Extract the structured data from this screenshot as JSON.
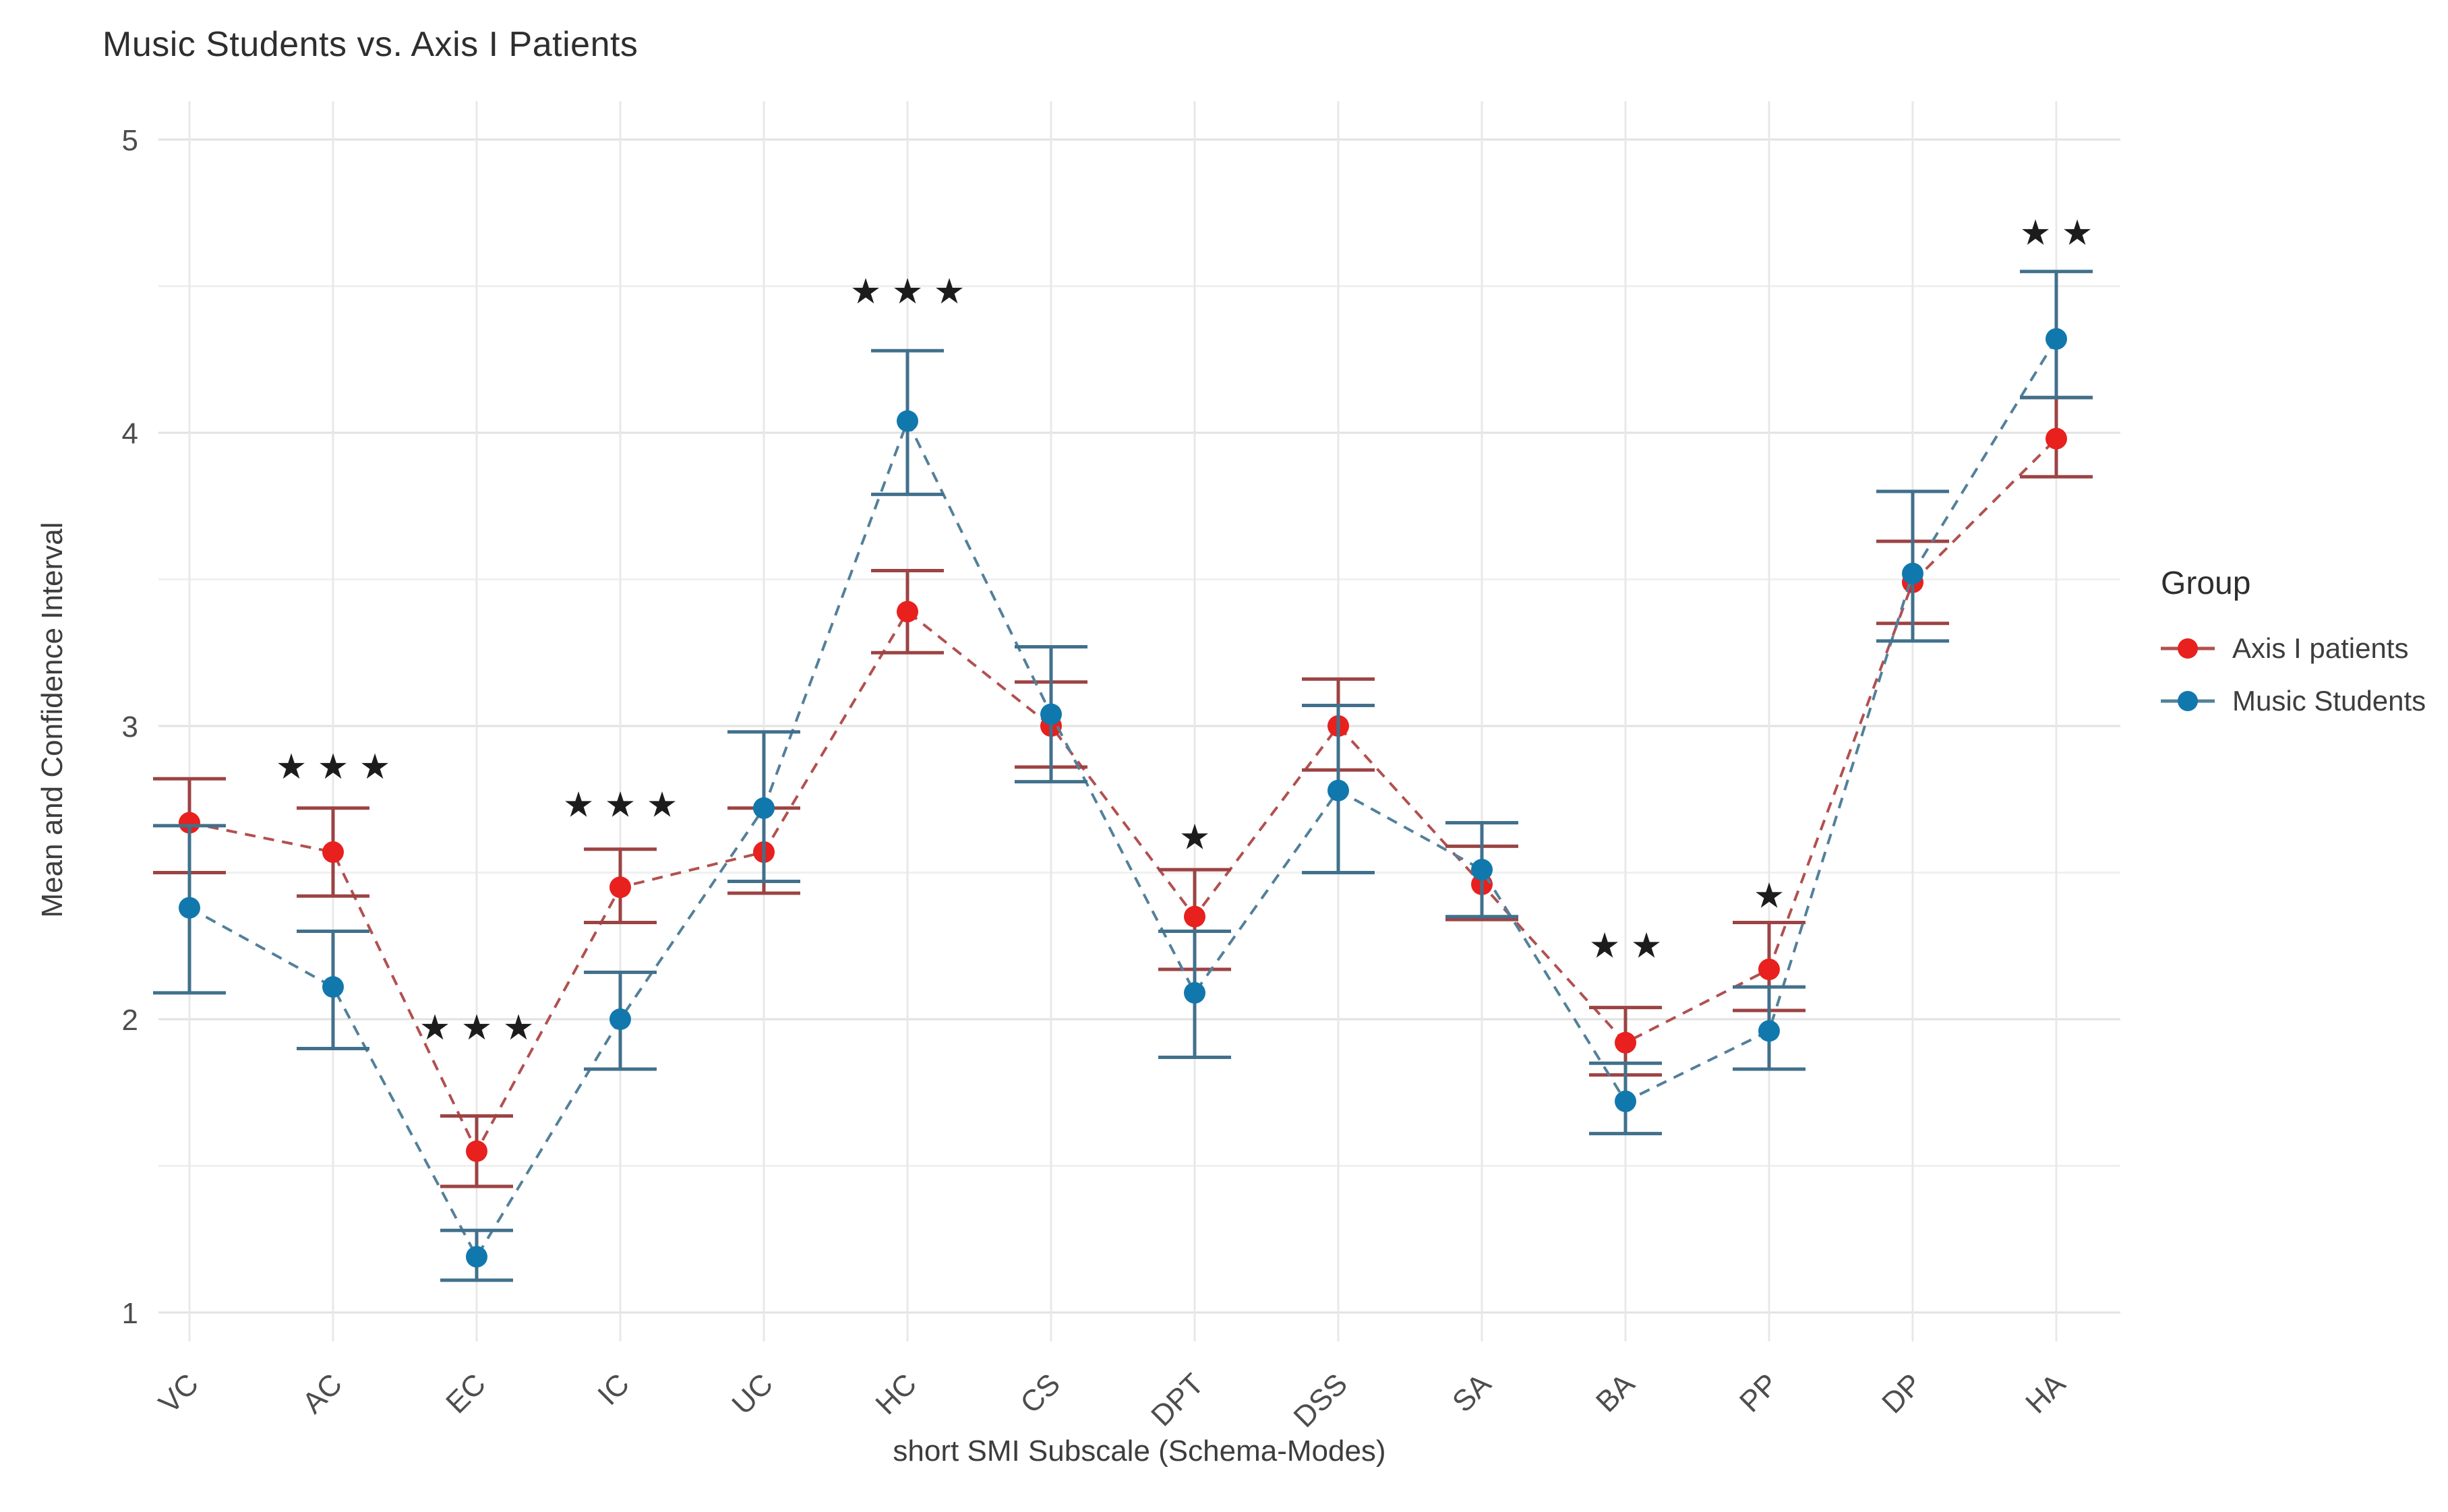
{
  "page": {
    "background": "#ffffff",
    "text_color": "#3d3d3d"
  },
  "chart_data": {
    "type": "line",
    "title": "Music Students vs. Axis I Patients",
    "xlabel": "short SMI Subscale (Schema-Modes)",
    "ylabel": "Mean and Confidence Interval",
    "categories": [
      "VC",
      "AC",
      "EC",
      "IC",
      "UC",
      "HC",
      "CS",
      "DPT",
      "DSS",
      "SA",
      "BA",
      "PP",
      "DP",
      "HA"
    ],
    "yticks": [
      1,
      2,
      3,
      4,
      5
    ],
    "ylim": [
      0.85,
      5.15
    ],
    "grid": {
      "horizontal_major": true,
      "horizontal_minor": true,
      "vertical_major": true,
      "legend_position": "right"
    },
    "style": {
      "major_grid_color": "#e2e2e2",
      "minor_grid_color": "#f0f0f0",
      "vertical_grid_color": "#e8e8e8",
      "star_color": "#1c1c1c",
      "tick_label_color": "#4d4d4d"
    },
    "legend": {
      "title": "Group"
    },
    "series": [
      {
        "name": "Axis I patients",
        "point_color": "#e8201e",
        "line_color": "#b25050",
        "errorbar_color": "#9c4343",
        "means": [
          2.67,
          2.57,
          1.55,
          2.45,
          2.57,
          3.39,
          3.0,
          2.35,
          3.0,
          2.46,
          1.92,
          2.17,
          3.49,
          3.98
        ],
        "ci_low": [
          2.5,
          2.42,
          1.43,
          2.33,
          2.43,
          3.25,
          2.86,
          2.17,
          2.85,
          2.34,
          1.81,
          2.03,
          3.35,
          3.85
        ],
        "ci_high": [
          2.82,
          2.72,
          1.67,
          2.58,
          2.72,
          3.53,
          3.15,
          2.51,
          3.16,
          2.59,
          2.04,
          2.33,
          3.63,
          4.12
        ]
      },
      {
        "name": "Music Students",
        "point_color": "#1178ad",
        "line_color": "#53809a",
        "errorbar_color": "#41708c",
        "means": [
          2.38,
          2.11,
          1.19,
          2.0,
          2.72,
          4.04,
          3.04,
          2.09,
          2.78,
          2.51,
          1.72,
          1.96,
          3.52,
          4.32
        ],
        "ci_low": [
          2.09,
          1.9,
          1.11,
          1.83,
          2.47,
          3.79,
          2.81,
          1.87,
          2.5,
          2.35,
          1.61,
          1.83,
          3.29,
          4.12
        ],
        "ci_high": [
          2.66,
          2.3,
          1.28,
          2.16,
          2.98,
          4.28,
          3.27,
          2.3,
          3.07,
          2.67,
          1.85,
          2.11,
          3.8,
          4.55
        ]
      }
    ],
    "significance": {
      "labels": [
        "",
        "***",
        "***",
        "***",
        "",
        "***",
        "",
        "*",
        "",
        "",
        "**",
        "*",
        "",
        "**"
      ],
      "y": [
        null,
        2.86,
        1.97,
        2.73,
        null,
        4.48,
        null,
        2.62,
        null,
        null,
        2.25,
        2.42,
        null,
        4.68
      ]
    }
  }
}
